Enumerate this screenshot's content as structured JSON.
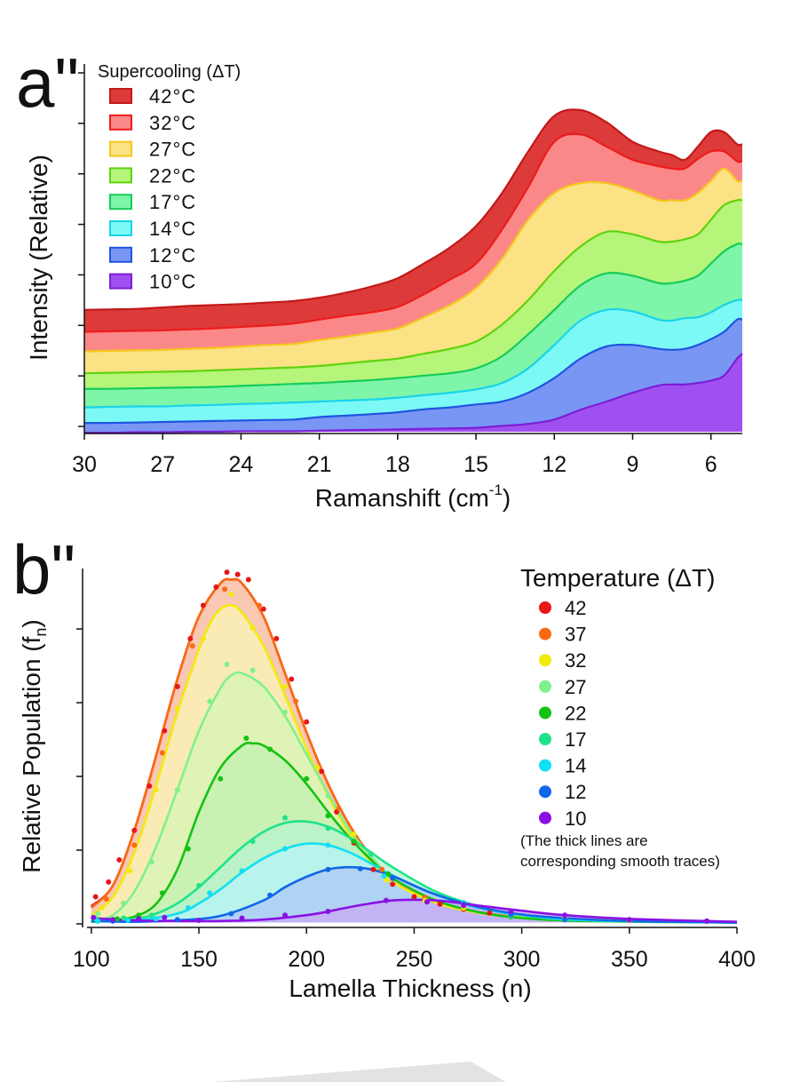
{
  "chart_data": [
    {
      "type": "area",
      "panel_label": "a\"",
      "xlabel": "Ramanshift (cm",
      "xlabel_sup": "-1",
      "xlabel_end": ")",
      "ylabel": "Intensity (Relative)",
      "xlim": [
        30,
        4.8
      ],
      "x_reversed": true,
      "x_ticks": [
        30,
        27,
        24,
        21,
        18,
        15,
        12,
        9,
        6
      ],
      "ylim": [
        0,
        7.4
      ],
      "legend_title": "Supercooling (ΔT)",
      "legend_placement": "top-left",
      "x": [
        30,
        29,
        28,
        27,
        26,
        25,
        24,
        23,
        22,
        21,
        20,
        19,
        18,
        17,
        16,
        15,
        14,
        13,
        12,
        11,
        10,
        9,
        8,
        7.5,
        7,
        6.5,
        6,
        5.5,
        5,
        4.8
      ],
      "series": [
        {
          "name": "10°C",
          "color": "#a050f0",
          "edge": "#7a1fd6",
          "values": [
            -0.02,
            -0.02,
            -0.01,
            -0.01,
            0.0,
            0.0,
            0.01,
            0.01,
            0.01,
            0.02,
            0.03,
            0.04,
            0.05,
            0.06,
            0.07,
            0.08,
            0.12,
            0.16,
            0.25,
            0.45,
            0.62,
            0.8,
            0.95,
            0.97,
            0.97,
            1.0,
            1.05,
            1.15,
            1.5,
            1.6
          ]
        },
        {
          "name": "12°C",
          "color": "#7a96f5",
          "edge": "#1f55e0",
          "values": [
            0.18,
            0.18,
            0.19,
            0.2,
            0.21,
            0.22,
            0.23,
            0.24,
            0.25,
            0.3,
            0.33,
            0.36,
            0.4,
            0.46,
            0.5,
            0.56,
            0.62,
            0.8,
            1.1,
            1.5,
            1.75,
            1.78,
            1.7,
            1.68,
            1.7,
            1.78,
            1.9,
            2.05,
            2.3,
            2.3
          ]
        },
        {
          "name": "14°C",
          "color": "#7cf9f6",
          "edge": "#1ad3e8",
          "values": [
            0.5,
            0.51,
            0.52,
            0.52,
            0.54,
            0.55,
            0.57,
            0.58,
            0.6,
            0.62,
            0.64,
            0.66,
            0.7,
            0.75,
            0.8,
            0.87,
            1.0,
            1.3,
            1.78,
            2.28,
            2.5,
            2.47,
            2.3,
            2.28,
            2.33,
            2.35,
            2.45,
            2.6,
            2.7,
            2.7
          ]
        },
        {
          "name": "17°C",
          "color": "#7ef5a8",
          "edge": "#14cc5a",
          "values": [
            0.88,
            0.88,
            0.89,
            0.9,
            0.91,
            0.92,
            0.94,
            0.96,
            0.98,
            1.0,
            1.03,
            1.06,
            1.1,
            1.15,
            1.2,
            1.3,
            1.55,
            2.0,
            2.5,
            3.0,
            3.25,
            3.2,
            3.05,
            3.05,
            3.1,
            3.2,
            3.45,
            3.7,
            3.85,
            3.85
          ]
        },
        {
          "name": "22°C",
          "color": "#b5f57a",
          "edge": "#5ed30e",
          "values": [
            1.2,
            1.21,
            1.22,
            1.23,
            1.24,
            1.26,
            1.28,
            1.3,
            1.32,
            1.35,
            1.4,
            1.45,
            1.5,
            1.6,
            1.7,
            1.85,
            2.2,
            2.7,
            3.3,
            3.8,
            4.1,
            4.05,
            3.9,
            3.9,
            3.95,
            4.05,
            4.35,
            4.65,
            4.75,
            4.75
          ]
        },
        {
          "name": "27°C",
          "color": "#fae285",
          "edge": "#f5c61c",
          "values": [
            1.65,
            1.66,
            1.67,
            1.68,
            1.7,
            1.72,
            1.75,
            1.78,
            1.8,
            1.88,
            1.95,
            2.03,
            2.12,
            2.35,
            2.6,
            2.95,
            3.55,
            4.35,
            4.9,
            5.1,
            5.1,
            4.95,
            4.75,
            4.75,
            4.75,
            4.9,
            5.15,
            5.4,
            5.15,
            5.15
          ]
        },
        {
          "name": "32°C",
          "color": "#fb8888",
          "edge": "#ee1c1c",
          "values": [
            2.05,
            2.06,
            2.07,
            2.08,
            2.1,
            2.12,
            2.15,
            2.18,
            2.22,
            2.3,
            2.38,
            2.45,
            2.56,
            2.82,
            3.12,
            3.45,
            4.15,
            5.02,
            5.95,
            6.1,
            5.85,
            5.58,
            5.45,
            5.4,
            5.4,
            5.6,
            5.75,
            5.75,
            5.55,
            5.55
          ]
        },
        {
          "name": "42°C",
          "color": "#dd3a3a",
          "edge": "#c21a1a",
          "values": [
            2.5,
            2.51,
            2.52,
            2.55,
            2.58,
            2.6,
            2.62,
            2.65,
            2.68,
            2.75,
            2.85,
            2.98,
            3.15,
            3.45,
            3.78,
            4.22,
            4.9,
            5.75,
            6.48,
            6.6,
            6.35,
            5.95,
            5.75,
            5.68,
            5.58,
            5.85,
            6.15,
            6.15,
            5.9,
            5.9
          ]
        }
      ]
    },
    {
      "type": "scatter",
      "panel_label": "b\"",
      "xlabel": "Lamella Thickness (n)",
      "ylabel": "Relative Population (f",
      "ylabel_sub": "n",
      "ylabel_end": ")",
      "xlim": [
        98,
        400
      ],
      "x_ticks": [
        100,
        150,
        200,
        250,
        300,
        350,
        400
      ],
      "ylim": [
        -0.03,
        4.8
      ],
      "legend_title": "Temperature (ΔT)",
      "legend_placement": "top-right",
      "note_line1": "(The thick lines are",
      "note_line2": "corresponding smooth traces)",
      "series": [
        {
          "name": "10",
          "color": "#8a10e6",
          "fill": "#c9a8f5",
          "curve_x": [
            100,
            120,
            140,
            160,
            180,
            200,
            210,
            220,
            230,
            240,
            250,
            260,
            270,
            280,
            300,
            320,
            350,
            400
          ],
          "curve_y": [
            0.06,
            0.03,
            0.02,
            0.02,
            0.04,
            0.1,
            0.15,
            0.21,
            0.26,
            0.3,
            0.31,
            0.3,
            0.27,
            0.23,
            0.16,
            0.1,
            0.05,
            0.01
          ],
          "points_x": [
            101,
            110,
            122,
            134,
            150,
            170,
            190,
            210,
            237,
            256,
            273,
            295,
            320,
            350,
            386
          ],
          "points_y": [
            0.07,
            0.04,
            0.05,
            0.07,
            0.03,
            0.06,
            0.1,
            0.15,
            0.3,
            0.28,
            0.23,
            0.15,
            0.1,
            0.04,
            0.02
          ]
        },
        {
          "name": "12",
          "color": "#1168e6",
          "fill": "#aec8f5",
          "curve_x": [
            100,
            120,
            140,
            160,
            180,
            190,
            200,
            210,
            220,
            230,
            240,
            250,
            260,
            280,
            300,
            320,
            350,
            400
          ],
          "curve_y": [
            0.02,
            0.01,
            0.03,
            0.09,
            0.3,
            0.48,
            0.62,
            0.72,
            0.75,
            0.72,
            0.63,
            0.5,
            0.38,
            0.21,
            0.11,
            0.06,
            0.02,
            0.0
          ],
          "points_x": [
            110,
            140,
            165,
            183,
            210,
            225,
            240,
            273,
            295,
            320
          ],
          "points_y": [
            0.02,
            0.04,
            0.12,
            0.37,
            0.72,
            0.73,
            0.6,
            0.25,
            0.11,
            0.04
          ]
        },
        {
          "name": "14",
          "color": "#12dff5",
          "fill": "#b7f4f8",
          "curve_x": [
            100,
            120,
            140,
            150,
            160,
            170,
            180,
            190,
            200,
            210,
            220,
            230,
            240,
            260,
            280,
            300,
            330,
            400
          ],
          "curve_y": [
            0.02,
            0.03,
            0.12,
            0.26,
            0.45,
            0.68,
            0.87,
            1.0,
            1.07,
            1.05,
            0.95,
            0.8,
            0.64,
            0.38,
            0.2,
            0.1,
            0.03,
            0.0
          ],
          "points_x": [
            103,
            117,
            130,
            145,
            155,
            170,
            190,
            210,
            236,
            273,
            295
          ],
          "points_y": [
            0.02,
            0.03,
            0.05,
            0.2,
            0.4,
            0.7,
            1.0,
            1.05,
            0.63,
            0.27,
            0.1
          ]
        },
        {
          "name": "17",
          "color": "#1ee389",
          "fill": "#b6f2cf",
          "curve_x": [
            100,
            120,
            130,
            140,
            150,
            160,
            170,
            180,
            190,
            200,
            210,
            220,
            230,
            240,
            260,
            280,
            300,
            330,
            400
          ],
          "curve_y": [
            0.02,
            0.05,
            0.12,
            0.26,
            0.48,
            0.75,
            1.02,
            1.23,
            1.35,
            1.37,
            1.3,
            1.15,
            0.95,
            0.75,
            0.42,
            0.22,
            0.1,
            0.03,
            0.0
          ],
          "points_x": [
            102,
            115,
            128,
            150,
            175,
            190,
            210,
            230,
            273,
            295
          ],
          "points_y": [
            0.05,
            0.06,
            0.1,
            0.5,
            1.1,
            1.42,
            1.28,
            0.93,
            0.25,
            0.1
          ]
        },
        {
          "name": "22",
          "color": "#14c214",
          "fill": "#c3f0b3",
          "curve_x": [
            100,
            110,
            120,
            130,
            140,
            150,
            160,
            170,
            175,
            180,
            190,
            200,
            210,
            220,
            230,
            240,
            260,
            280,
            300,
            330,
            400
          ],
          "curve_y": [
            0.01,
            0.03,
            0.08,
            0.25,
            0.72,
            1.5,
            2.1,
            2.4,
            2.43,
            2.4,
            2.2,
            1.88,
            1.5,
            1.15,
            0.85,
            0.6,
            0.3,
            0.14,
            0.06,
            0.02,
            0.0
          ],
          "points_x": [
            103,
            112,
            122,
            133,
            145,
            160,
            172,
            183,
            200,
            210,
            222,
            238,
            273,
            295
          ],
          "points_y": [
            0.02,
            0.05,
            0.1,
            0.4,
            1.0,
            1.95,
            2.5,
            2.35,
            1.95,
            1.45,
            1.1,
            0.66,
            0.24,
            0.08
          ]
        },
        {
          "name": "27",
          "color": "#7ef28c",
          "fill": "#d7f5b7",
          "curve_x": [
            100,
            110,
            120,
            130,
            140,
            150,
            160,
            165,
            170,
            180,
            190,
            200,
            210,
            220,
            230,
            240,
            260,
            280,
            300,
            330,
            400
          ],
          "curve_y": [
            0.03,
            0.1,
            0.42,
            1.02,
            1.8,
            2.6,
            3.18,
            3.35,
            3.38,
            3.2,
            2.8,
            2.28,
            1.75,
            1.25,
            0.9,
            0.6,
            0.3,
            0.14,
            0.06,
            0.02,
            0.0
          ],
          "points_x": [
            103,
            115,
            128,
            140,
            155,
            163,
            175,
            190,
            210,
            230,
            273,
            295
          ],
          "points_y": [
            0.12,
            0.26,
            0.82,
            1.8,
            3.0,
            3.5,
            3.42,
            2.85,
            1.72,
            0.92,
            0.25,
            0.08
          ]
        },
        {
          "name": "32",
          "color": "#f2ea0c",
          "fill": "#fbf5b3",
          "curve_x": [
            100,
            110,
            120,
            130,
            140,
            150,
            155,
            160,
            165,
            170,
            180,
            190,
            200,
            210,
            220,
            230,
            240,
            260,
            280,
            300,
            330,
            400
          ],
          "curve_y": [
            0.1,
            0.35,
            0.95,
            1.85,
            2.85,
            3.7,
            4.05,
            4.25,
            4.3,
            4.2,
            3.75,
            3.08,
            2.36,
            1.72,
            1.2,
            0.82,
            0.55,
            0.27,
            0.13,
            0.07,
            0.04,
            0.01
          ],
          "points_x": [
            105,
            118,
            130,
            140,
            152,
            165,
            175,
            190,
            205,
            222,
            237,
            255,
            273,
            295,
            320,
            350
          ],
          "points_y": [
            0.2,
            0.7,
            1.8,
            2.9,
            3.85,
            4.45,
            4.0,
            3.2,
            2.1,
            1.2,
            0.58,
            0.3,
            0.2,
            0.1,
            0.06,
            0.04
          ]
        },
        {
          "name": "37",
          "color": "#fa6a14",
          "fill": "#f8c9ad",
          "curve_x": [
            100,
            110,
            120,
            130,
            140,
            150,
            160,
            165,
            170,
            180,
            190,
            200,
            210,
            220,
            230,
            240,
            260,
            280,
            300,
            330,
            400
          ],
          "curve_y": [
            0.2,
            0.5,
            1.25,
            2.25,
            3.3,
            4.15,
            4.6,
            4.65,
            4.6,
            4.15,
            3.38,
            2.58,
            1.88,
            1.32,
            0.9,
            0.6,
            0.28,
            0.14,
            0.07,
            0.03,
            0.0
          ],
          "points_x": [
            107,
            120,
            133,
            147,
            162,
            178,
            195,
            215,
            235,
            255,
            273,
            295,
            320,
            350
          ],
          "points_y": [
            0.32,
            1.05,
            2.3,
            3.75,
            4.52,
            4.3,
            3.0,
            1.55,
            0.72,
            0.34,
            0.19,
            0.09,
            0.05,
            0.03
          ]
        },
        {
          "name": "42",
          "color": "#e61818",
          "fill": "#f3b0b0",
          "curve_x": [
            100,
            110,
            120,
            130,
            140,
            150,
            160,
            165,
            170,
            180,
            190,
            200,
            210,
            220,
            230,
            240,
            260,
            280,
            300,
            330,
            400
          ],
          "curve_y": [
            0.22,
            0.5,
            1.25,
            2.25,
            3.3,
            4.15,
            4.6,
            4.65,
            4.6,
            4.15,
            3.38,
            2.58,
            1.88,
            1.32,
            0.9,
            0.6,
            0.28,
            0.14,
            0.07,
            0.03,
            0.0
          ],
          "points_x": [
            102,
            108,
            113,
            120,
            127,
            134,
            140,
            146,
            152,
            158,
            163,
            168,
            173,
            180,
            186,
            193,
            200,
            207,
            214,
            222,
            231,
            240,
            250,
            262,
            273,
            285,
            295,
            320,
            350,
            386
          ],
          "points_y": [
            0.35,
            0.55,
            0.85,
            1.25,
            1.85,
            2.6,
            3.2,
            3.85,
            4.3,
            4.55,
            4.75,
            4.72,
            4.65,
            4.25,
            3.85,
            3.3,
            2.72,
            2.05,
            1.5,
            1.08,
            0.72,
            0.52,
            0.35,
            0.25,
            0.18,
            0.13,
            0.1,
            0.06,
            0.04,
            0.02
          ]
        }
      ]
    }
  ]
}
